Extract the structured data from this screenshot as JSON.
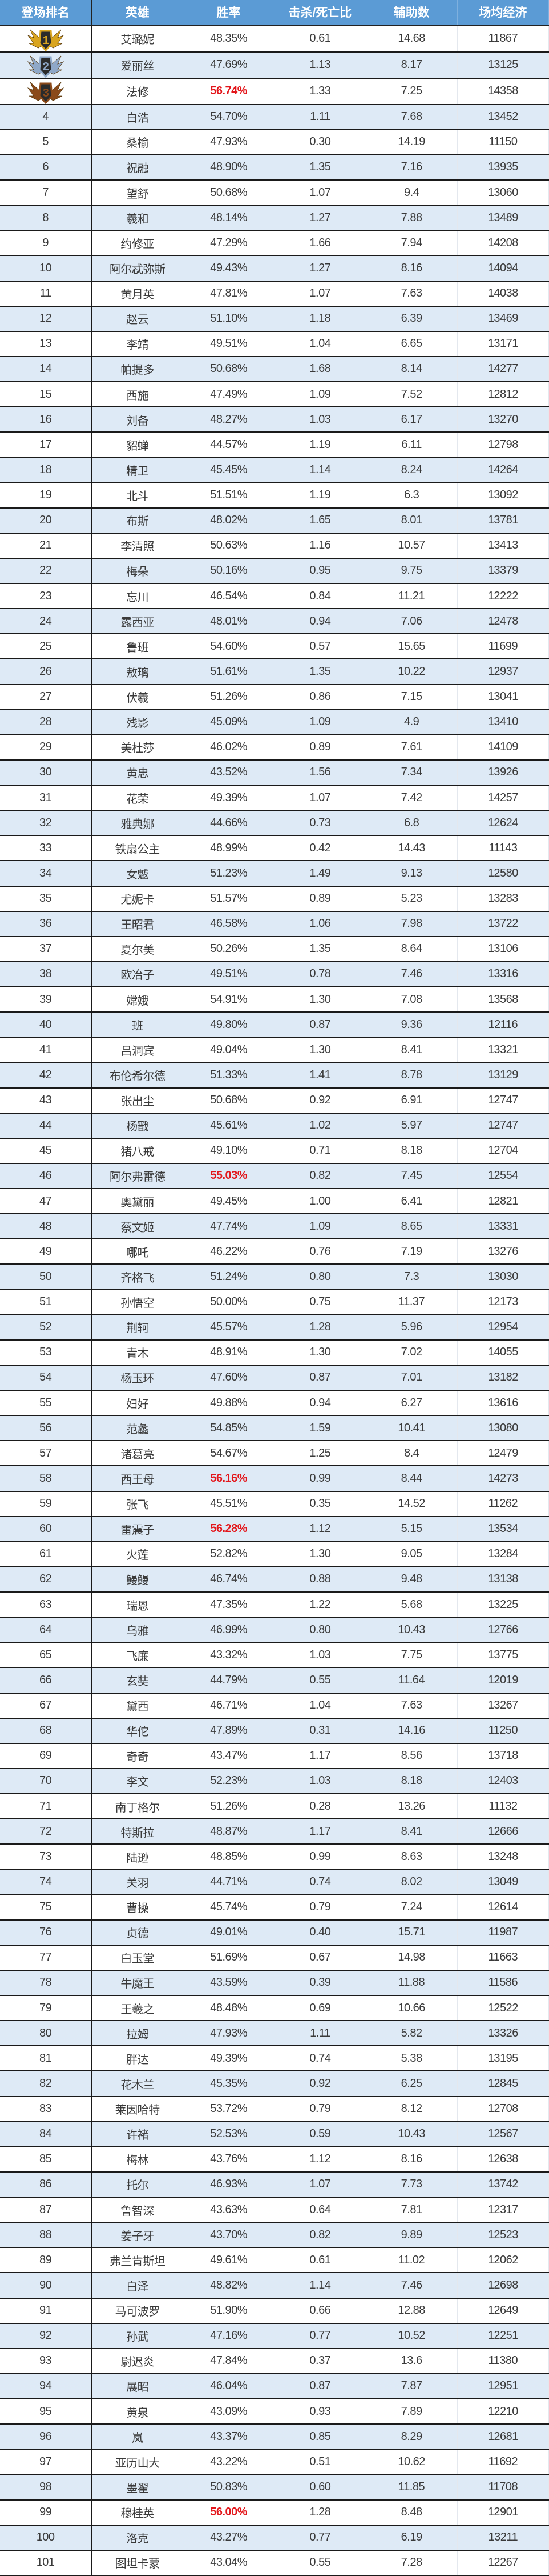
{
  "header": {
    "rank": "登场排名",
    "hero": "英雄",
    "win_rate": "胜率",
    "kda": "击杀/死亡比",
    "assists": "辅助数",
    "gold": "场均经济"
  },
  "colors": {
    "header_bg": "#5b9bd5",
    "alt_row": "#deeaf6",
    "highlight": "#e3161b",
    "medal_1": "#d9a520",
    "medal_2": "#8fa8c8",
    "medal_3": "#8b4a1a"
  },
  "rows": [
    {
      "rank": "1",
      "hero": "艾璐妮",
      "win_rate": "48.35%",
      "kda": "0.61",
      "assists": "14.68",
      "gold": "11867",
      "medal": "gold"
    },
    {
      "rank": "2",
      "hero": "爱丽丝",
      "win_rate": "47.69%",
      "kda": "1.13",
      "assists": "8.17",
      "gold": "13125",
      "medal": "silver"
    },
    {
      "rank": "3",
      "hero": "法修",
      "win_rate": "56.74%",
      "kda": "1.33",
      "assists": "7.25",
      "gold": "14358",
      "medal": "bronze",
      "highlight": true
    },
    {
      "rank": "4",
      "hero": "白浩",
      "win_rate": "54.70%",
      "kda": "1.11",
      "assists": "7.68",
      "gold": "13452"
    },
    {
      "rank": "5",
      "hero": "桑榆",
      "win_rate": "47.93%",
      "kda": "0.30",
      "assists": "14.19",
      "gold": "11150"
    },
    {
      "rank": "6",
      "hero": "祝融",
      "win_rate": "48.90%",
      "kda": "1.35",
      "assists": "7.16",
      "gold": "13935"
    },
    {
      "rank": "7",
      "hero": "望舒",
      "win_rate": "50.68%",
      "kda": "1.07",
      "assists": "9.4",
      "gold": "13060"
    },
    {
      "rank": "8",
      "hero": "羲和",
      "win_rate": "48.14%",
      "kda": "1.27",
      "assists": "7.88",
      "gold": "13489"
    },
    {
      "rank": "9",
      "hero": "约修亚",
      "win_rate": "47.29%",
      "kda": "1.66",
      "assists": "7.94",
      "gold": "14208"
    },
    {
      "rank": "10",
      "hero": "阿尔忒弥斯",
      "win_rate": "49.43%",
      "kda": "1.27",
      "assists": "8.16",
      "gold": "14094"
    },
    {
      "rank": "11",
      "hero": "黄月英",
      "win_rate": "47.81%",
      "kda": "1.07",
      "assists": "7.63",
      "gold": "14038"
    },
    {
      "rank": "12",
      "hero": "赵云",
      "win_rate": "51.10%",
      "kda": "1.18",
      "assists": "6.39",
      "gold": "13469"
    },
    {
      "rank": "13",
      "hero": "李靖",
      "win_rate": "49.51%",
      "kda": "1.04",
      "assists": "6.65",
      "gold": "13171"
    },
    {
      "rank": "14",
      "hero": "帕提多",
      "win_rate": "50.68%",
      "kda": "1.68",
      "assists": "8.14",
      "gold": "14277"
    },
    {
      "rank": "15",
      "hero": "西施",
      "win_rate": "47.49%",
      "kda": "1.09",
      "assists": "7.52",
      "gold": "12812"
    },
    {
      "rank": "16",
      "hero": "刘备",
      "win_rate": "48.27%",
      "kda": "1.03",
      "assists": "6.17",
      "gold": "13270"
    },
    {
      "rank": "17",
      "hero": "貂蝉",
      "win_rate": "44.57%",
      "kda": "1.19",
      "assists": "6.11",
      "gold": "12798"
    },
    {
      "rank": "18",
      "hero": "精卫",
      "win_rate": "45.45%",
      "kda": "1.14",
      "assists": "8.24",
      "gold": "14264"
    },
    {
      "rank": "19",
      "hero": "北斗",
      "win_rate": "51.51%",
      "kda": "1.19",
      "assists": "6.3",
      "gold": "13092"
    },
    {
      "rank": "20",
      "hero": "布斯",
      "win_rate": "48.02%",
      "kda": "1.65",
      "assists": "8.01",
      "gold": "13781"
    },
    {
      "rank": "21",
      "hero": "李清照",
      "win_rate": "50.63%",
      "kda": "1.16",
      "assists": "10.57",
      "gold": "13413"
    },
    {
      "rank": "22",
      "hero": "梅朵",
      "win_rate": "50.16%",
      "kda": "0.95",
      "assists": "9.75",
      "gold": "13379"
    },
    {
      "rank": "23",
      "hero": "忘川",
      "win_rate": "46.54%",
      "kda": "0.84",
      "assists": "11.21",
      "gold": "12222"
    },
    {
      "rank": "24",
      "hero": "露西亚",
      "win_rate": "48.01%",
      "kda": "0.94",
      "assists": "7.06",
      "gold": "12478"
    },
    {
      "rank": "25",
      "hero": "鲁班",
      "win_rate": "54.60%",
      "kda": "0.57",
      "assists": "15.65",
      "gold": "11699"
    },
    {
      "rank": "26",
      "hero": "敖璃",
      "win_rate": "51.61%",
      "kda": "1.35",
      "assists": "10.22",
      "gold": "12937"
    },
    {
      "rank": "27",
      "hero": "伏羲",
      "win_rate": "51.26%",
      "kda": "0.86",
      "assists": "7.15",
      "gold": "13041"
    },
    {
      "rank": "28",
      "hero": "残影",
      "win_rate": "45.09%",
      "kda": "1.09",
      "assists": "4.9",
      "gold": "13410"
    },
    {
      "rank": "29",
      "hero": "美杜莎",
      "win_rate": "46.02%",
      "kda": "0.89",
      "assists": "7.61",
      "gold": "14109"
    },
    {
      "rank": "30",
      "hero": "黄忠",
      "win_rate": "43.52%",
      "kda": "1.56",
      "assists": "7.34",
      "gold": "13926"
    },
    {
      "rank": "31",
      "hero": "花荣",
      "win_rate": "49.39%",
      "kda": "1.07",
      "assists": "7.42",
      "gold": "14257"
    },
    {
      "rank": "32",
      "hero": "雅典娜",
      "win_rate": "44.66%",
      "kda": "0.73",
      "assists": "6.8",
      "gold": "12624"
    },
    {
      "rank": "33",
      "hero": "铁扇公主",
      "win_rate": "48.99%",
      "kda": "0.42",
      "assists": "14.43",
      "gold": "11143"
    },
    {
      "rank": "34",
      "hero": "女魃",
      "win_rate": "51.23%",
      "kda": "1.49",
      "assists": "9.13",
      "gold": "12580"
    },
    {
      "rank": "35",
      "hero": "尤妮卡",
      "win_rate": "51.57%",
      "kda": "0.89",
      "assists": "5.23",
      "gold": "13283"
    },
    {
      "rank": "36",
      "hero": "王昭君",
      "win_rate": "46.58%",
      "kda": "1.06",
      "assists": "7.98",
      "gold": "13722"
    },
    {
      "rank": "37",
      "hero": "夏尔美",
      "win_rate": "50.26%",
      "kda": "1.35",
      "assists": "8.64",
      "gold": "13106"
    },
    {
      "rank": "38",
      "hero": "欧冶子",
      "win_rate": "49.51%",
      "kda": "0.78",
      "assists": "7.46",
      "gold": "13316"
    },
    {
      "rank": "39",
      "hero": "嫦娥",
      "win_rate": "54.91%",
      "kda": "1.30",
      "assists": "7.08",
      "gold": "13568"
    },
    {
      "rank": "40",
      "hero": "班",
      "win_rate": "49.80%",
      "kda": "0.87",
      "assists": "9.36",
      "gold": "12116"
    },
    {
      "rank": "41",
      "hero": "吕洞宾",
      "win_rate": "49.04%",
      "kda": "1.30",
      "assists": "8.41",
      "gold": "13321"
    },
    {
      "rank": "42",
      "hero": "布伦希尔德",
      "win_rate": "51.33%",
      "kda": "1.41",
      "assists": "8.78",
      "gold": "13129"
    },
    {
      "rank": "43",
      "hero": "张出尘",
      "win_rate": "50.68%",
      "kda": "0.92",
      "assists": "6.91",
      "gold": "12747"
    },
    {
      "rank": "44",
      "hero": "杨戬",
      "win_rate": "45.61%",
      "kda": "1.02",
      "assists": "5.97",
      "gold": "12747"
    },
    {
      "rank": "45",
      "hero": "猪八戒",
      "win_rate": "49.10%",
      "kda": "0.71",
      "assists": "8.18",
      "gold": "12704"
    },
    {
      "rank": "46",
      "hero": "阿尔弗雷德",
      "win_rate": "55.03%",
      "kda": "0.82",
      "assists": "7.45",
      "gold": "12554",
      "highlight": true
    },
    {
      "rank": "47",
      "hero": "奥黛丽",
      "win_rate": "49.45%",
      "kda": "1.00",
      "assists": "6.41",
      "gold": "12821"
    },
    {
      "rank": "48",
      "hero": "蔡文姬",
      "win_rate": "47.74%",
      "kda": "1.09",
      "assists": "8.65",
      "gold": "13331"
    },
    {
      "rank": "49",
      "hero": "哪吒",
      "win_rate": "46.22%",
      "kda": "0.76",
      "assists": "7.19",
      "gold": "13276"
    },
    {
      "rank": "50",
      "hero": "齐格飞",
      "win_rate": "51.24%",
      "kda": "0.80",
      "assists": "7.3",
      "gold": "13030"
    },
    {
      "rank": "51",
      "hero": "孙悟空",
      "win_rate": "50.00%",
      "kda": "0.75",
      "assists": "11.37",
      "gold": "12173"
    },
    {
      "rank": "52",
      "hero": "荆轲",
      "win_rate": "45.57%",
      "kda": "1.28",
      "assists": "5.96",
      "gold": "12954"
    },
    {
      "rank": "53",
      "hero": "青木",
      "win_rate": "48.91%",
      "kda": "1.30",
      "assists": "7.02",
      "gold": "14055"
    },
    {
      "rank": "54",
      "hero": "杨玉环",
      "win_rate": "47.60%",
      "kda": "0.87",
      "assists": "7.01",
      "gold": "13182"
    },
    {
      "rank": "55",
      "hero": "妇好",
      "win_rate": "49.88%",
      "kda": "0.94",
      "assists": "6.27",
      "gold": "13616"
    },
    {
      "rank": "56",
      "hero": "范蠡",
      "win_rate": "54.85%",
      "kda": "1.59",
      "assists": "10.41",
      "gold": "13080"
    },
    {
      "rank": "57",
      "hero": "诸葛亮",
      "win_rate": "54.67%",
      "kda": "1.25",
      "assists": "8.4",
      "gold": "12479"
    },
    {
      "rank": "58",
      "hero": "西王母",
      "win_rate": "56.16%",
      "kda": "0.99",
      "assists": "8.44",
      "gold": "14273",
      "highlight": true
    },
    {
      "rank": "59",
      "hero": "张飞",
      "win_rate": "45.51%",
      "kda": "0.35",
      "assists": "14.52",
      "gold": "11262"
    },
    {
      "rank": "60",
      "hero": "雷震子",
      "win_rate": "56.28%",
      "kda": "1.12",
      "assists": "5.15",
      "gold": "13534",
      "highlight": true
    },
    {
      "rank": "61",
      "hero": "火莲",
      "win_rate": "52.82%",
      "kda": "1.30",
      "assists": "9.05",
      "gold": "13284"
    },
    {
      "rank": "62",
      "hero": "鳗鳗",
      "win_rate": "46.74%",
      "kda": "0.88",
      "assists": "9.48",
      "gold": "13138"
    },
    {
      "rank": "63",
      "hero": "瑞恩",
      "win_rate": "47.35%",
      "kda": "1.22",
      "assists": "5.68",
      "gold": "13225"
    },
    {
      "rank": "64",
      "hero": "乌雅",
      "win_rate": "46.99%",
      "kda": "0.80",
      "assists": "10.43",
      "gold": "12766"
    },
    {
      "rank": "65",
      "hero": "飞廉",
      "win_rate": "43.32%",
      "kda": "1.03",
      "assists": "7.75",
      "gold": "13775"
    },
    {
      "rank": "66",
      "hero": "玄奘",
      "win_rate": "44.79%",
      "kda": "0.55",
      "assists": "11.64",
      "gold": "12019"
    },
    {
      "rank": "67",
      "hero": "黛西",
      "win_rate": "46.71%",
      "kda": "1.04",
      "assists": "7.63",
      "gold": "13267"
    },
    {
      "rank": "68",
      "hero": "华佗",
      "win_rate": "47.89%",
      "kda": "0.31",
      "assists": "14.16",
      "gold": "11250"
    },
    {
      "rank": "69",
      "hero": "奇奇",
      "win_rate": "43.47%",
      "kda": "1.17",
      "assists": "8.56",
      "gold": "13718"
    },
    {
      "rank": "70",
      "hero": "李文",
      "win_rate": "52.23%",
      "kda": "1.03",
      "assists": "8.18",
      "gold": "12403"
    },
    {
      "rank": "71",
      "hero": "南丁格尔",
      "win_rate": "51.26%",
      "kda": "0.28",
      "assists": "13.26",
      "gold": "11132"
    },
    {
      "rank": "72",
      "hero": "特斯拉",
      "win_rate": "48.87%",
      "kda": "1.17",
      "assists": "8.41",
      "gold": "12666"
    },
    {
      "rank": "73",
      "hero": "陆逊",
      "win_rate": "48.85%",
      "kda": "0.99",
      "assists": "8.63",
      "gold": "13248"
    },
    {
      "rank": "74",
      "hero": "关羽",
      "win_rate": "44.71%",
      "kda": "0.74",
      "assists": "8.02",
      "gold": "13049"
    },
    {
      "rank": "75",
      "hero": "曹操",
      "win_rate": "45.74%",
      "kda": "0.79",
      "assists": "7.24",
      "gold": "12614"
    },
    {
      "rank": "76",
      "hero": "贞德",
      "win_rate": "49.01%",
      "kda": "0.40",
      "assists": "15.71",
      "gold": "11987"
    },
    {
      "rank": "77",
      "hero": "白玉堂",
      "win_rate": "51.69%",
      "kda": "0.67",
      "assists": "14.98",
      "gold": "11663"
    },
    {
      "rank": "78",
      "hero": "牛魔王",
      "win_rate": "43.59%",
      "kda": "0.39",
      "assists": "11.88",
      "gold": "11586"
    },
    {
      "rank": "79",
      "hero": "王羲之",
      "win_rate": "48.48%",
      "kda": "0.69",
      "assists": "10.66",
      "gold": "12522"
    },
    {
      "rank": "80",
      "hero": "拉姆",
      "win_rate": "47.93%",
      "kda": "1.11",
      "assists": "5.82",
      "gold": "13326"
    },
    {
      "rank": "81",
      "hero": "胖达",
      "win_rate": "49.39%",
      "kda": "0.74",
      "assists": "5.38",
      "gold": "13195"
    },
    {
      "rank": "82",
      "hero": "花木兰",
      "win_rate": "45.35%",
      "kda": "0.92",
      "assists": "6.25",
      "gold": "12845"
    },
    {
      "rank": "83",
      "hero": "莱因哈特",
      "win_rate": "53.72%",
      "kda": "0.79",
      "assists": "8.12",
      "gold": "12708"
    },
    {
      "rank": "84",
      "hero": "许褚",
      "win_rate": "52.53%",
      "kda": "0.59",
      "assists": "10.43",
      "gold": "12567"
    },
    {
      "rank": "85",
      "hero": "梅林",
      "win_rate": "43.76%",
      "kda": "1.12",
      "assists": "8.16",
      "gold": "12638"
    },
    {
      "rank": "86",
      "hero": "托尔",
      "win_rate": "46.93%",
      "kda": "1.07",
      "assists": "7.73",
      "gold": "13742"
    },
    {
      "rank": "87",
      "hero": "鲁智深",
      "win_rate": "43.63%",
      "kda": "0.64",
      "assists": "7.81",
      "gold": "12317"
    },
    {
      "rank": "88",
      "hero": "姜子牙",
      "win_rate": "43.70%",
      "kda": "0.82",
      "assists": "9.89",
      "gold": "12523"
    },
    {
      "rank": "89",
      "hero": "弗兰肯斯坦",
      "win_rate": "49.61%",
      "kda": "0.61",
      "assists": "11.02",
      "gold": "12062"
    },
    {
      "rank": "90",
      "hero": "白泽",
      "win_rate": "48.82%",
      "kda": "1.14",
      "assists": "7.46",
      "gold": "12698"
    },
    {
      "rank": "91",
      "hero": "马可波罗",
      "win_rate": "51.90%",
      "kda": "0.66",
      "assists": "12.88",
      "gold": "12649"
    },
    {
      "rank": "92",
      "hero": "孙武",
      "win_rate": "47.16%",
      "kda": "0.77",
      "assists": "10.52",
      "gold": "12251"
    },
    {
      "rank": "93",
      "hero": "尉迟炎",
      "win_rate": "47.84%",
      "kda": "0.37",
      "assists": "13.6",
      "gold": "11380"
    },
    {
      "rank": "94",
      "hero": "展昭",
      "win_rate": "46.04%",
      "kda": "0.87",
      "assists": "7.87",
      "gold": "12951"
    },
    {
      "rank": "95",
      "hero": "黄泉",
      "win_rate": "43.09%",
      "kda": "0.93",
      "assists": "7.89",
      "gold": "12210"
    },
    {
      "rank": "96",
      "hero": "岚",
      "win_rate": "43.37%",
      "kda": "0.85",
      "assists": "8.29",
      "gold": "12681"
    },
    {
      "rank": "97",
      "hero": "亚历山大",
      "win_rate": "43.22%",
      "kda": "0.51",
      "assists": "10.62",
      "gold": "11692"
    },
    {
      "rank": "98",
      "hero": "墨翟",
      "win_rate": "50.83%",
      "kda": "0.60",
      "assists": "11.85",
      "gold": "11708"
    },
    {
      "rank": "99",
      "hero": "穆桂英",
      "win_rate": "56.00%",
      "kda": "1.28",
      "assists": "8.48",
      "gold": "12901",
      "highlight": true
    },
    {
      "rank": "100",
      "hero": "洛克",
      "win_rate": "43.27%",
      "kda": "0.77",
      "assists": "6.19",
      "gold": "13211"
    },
    {
      "rank": "101",
      "hero": "图坦卡蒙",
      "win_rate": "43.04%",
      "kda": "0.55",
      "assists": "7.28",
      "gold": "12267"
    }
  ]
}
